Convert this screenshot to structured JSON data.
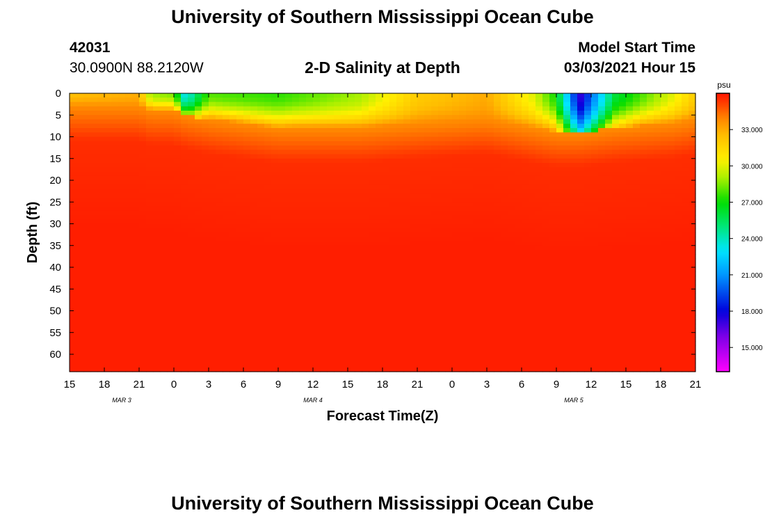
{
  "header": {
    "title": "University of Southern Mississippi Ocean Cube",
    "station_id": "42031",
    "coords": "30.0900N 88.2120W",
    "plot_title": "2-D Salinity at Depth",
    "model_start_label": "Model Start Time",
    "model_start_time": "03/03/2021 Hour 15"
  },
  "footer": {
    "title": "University of Southern Mississippi Ocean Cube"
  },
  "colors": {
    "max_salinity": "#ff1800",
    "orange": "#ff8c00",
    "yellow": "#ffee00",
    "green": "#22dd00",
    "cyan": "#00e5ff",
    "blue": "#0000dd",
    "magenta": "#ff00ff"
  },
  "chart_data": {
    "type": "heatmap",
    "title": "2-D Salinity at Depth",
    "xlabel": "Forecast Time(Z)",
    "ylabel": "Depth (ft)",
    "x_unit": "hours from model start",
    "xlim": [
      0,
      54
    ],
    "ylim": [
      0,
      64
    ],
    "y_inverted": true,
    "x_tick_values": [
      0,
      3,
      6,
      9,
      12,
      15,
      18,
      21,
      24,
      27,
      30,
      33,
      36,
      39,
      42,
      45,
      48,
      51,
      54
    ],
    "x_tick_labels": [
      "15",
      "18",
      "21",
      "0",
      "3",
      "6",
      "9",
      "12",
      "15",
      "18",
      "21",
      "0",
      "3",
      "6",
      "9",
      "12",
      "15",
      "18",
      "21"
    ],
    "date_labels": [
      {
        "x": 4.5,
        "text": "MAR 3"
      },
      {
        "x": 21,
        "text": "MAR 4"
      },
      {
        "x": 43.5,
        "text": "MAR 5"
      }
    ],
    "y_ticks": [
      0,
      5,
      10,
      15,
      20,
      25,
      30,
      35,
      40,
      45,
      50,
      55,
      60
    ],
    "colorbar": {
      "unit": "psu",
      "range": [
        13,
        36
      ],
      "ticks": [
        33,
        30,
        27,
        24,
        21,
        18,
        15
      ],
      "tick_labels": [
        "33.000",
        "30.000",
        "27.000",
        "24.000",
        "21.000",
        "18.000",
        "15.000"
      ]
    },
    "surface_layer": {
      "description_x": [
        0,
        6,
        7,
        9,
        10,
        12,
        18,
        25,
        30,
        36,
        40,
        42,
        44,
        47,
        52,
        54
      ],
      "salinity_at_0ft": [
        32.5,
        33,
        29,
        28.5,
        23,
        28,
        27.5,
        29,
        32,
        33,
        30,
        27,
        17,
        26,
        30,
        32
      ],
      "mixed_layer_depth_ft": [
        3,
        3,
        4,
        4,
        5,
        6,
        8,
        8,
        7,
        6,
        8,
        9,
        9,
        8,
        7,
        6
      ]
    },
    "deep_salinity": 35.8
  }
}
